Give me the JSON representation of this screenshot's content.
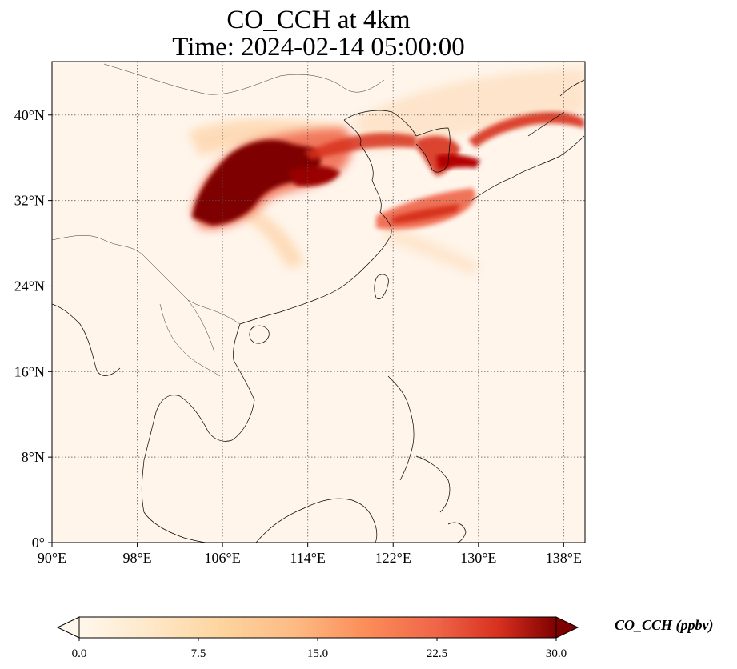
{
  "title_line1": "CO_CCH at 4km",
  "title_line2": "Time: 2024-02-14 05:00:00",
  "map": {
    "projection": "PlateCarree",
    "lon_range": [
      90,
      140
    ],
    "lat_range": [
      0,
      45
    ],
    "lon_ticks": [
      {
        "value": 90,
        "label": "90°E"
      },
      {
        "value": 98,
        "label": "98°E"
      },
      {
        "value": 106,
        "label": "106°E"
      },
      {
        "value": 114,
        "label": "114°E"
      },
      {
        "value": 122,
        "label": "122°E"
      },
      {
        "value": 130,
        "label": "130°E"
      },
      {
        "value": 138,
        "label": "138°E"
      }
    ],
    "lat_ticks": [
      {
        "value": 0,
        "label": "0°"
      },
      {
        "value": 8,
        "label": "8°N"
      },
      {
        "value": 16,
        "label": "16°N"
      },
      {
        "value": 24,
        "label": "24°N"
      },
      {
        "value": 32,
        "label": "32°N"
      },
      {
        "value": 40,
        "label": "40°N"
      }
    ],
    "gridlines": "dotted",
    "field_description_colors": {
      "low": "#fff5eb",
      "mid": "#f16913",
      "high": "#7f0000"
    }
  },
  "colorbar": {
    "label": "CO_CCH (ppbv)",
    "min": 0.0,
    "max": 30.0,
    "ticks": [
      {
        "value": 0.0,
        "label": "0.0"
      },
      {
        "value": 7.5,
        "label": "7.5"
      },
      {
        "value": 15.0,
        "label": "15.0"
      },
      {
        "value": 22.5,
        "label": "22.5"
      },
      {
        "value": 30.0,
        "label": "30.0"
      }
    ],
    "extend": "both",
    "colormap": "OrRd-like"
  }
}
